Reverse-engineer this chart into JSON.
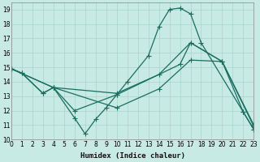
{
  "xlabel": "Humidex (Indice chaleur)",
  "xlim": [
    0,
    23
  ],
  "ylim": [
    10,
    19.5
  ],
  "yticks": [
    10,
    11,
    12,
    13,
    14,
    15,
    16,
    17,
    18,
    19
  ],
  "xticks": [
    0,
    1,
    2,
    3,
    4,
    5,
    6,
    7,
    8,
    9,
    10,
    11,
    12,
    13,
    14,
    15,
    16,
    17,
    18,
    19,
    20,
    21,
    22,
    23
  ],
  "bg_color": "#c8eae4",
  "grid_color": "#a8d4cc",
  "line_color": "#1a6e60",
  "line1_x": [
    0,
    1,
    3,
    4,
    6,
    10,
    11,
    13,
    14,
    15,
    16,
    17,
    18,
    22,
    23
  ],
  "line1_y": [
    14.9,
    14.6,
    13.2,
    13.6,
    12.0,
    13.1,
    14.0,
    15.8,
    17.8,
    19.0,
    19.1,
    18.7,
    16.7,
    11.9,
    10.7
  ],
  "line2_x": [
    0,
    1,
    3,
    4,
    6,
    7,
    8,
    9,
    10,
    16,
    17,
    20,
    22,
    23
  ],
  "line2_y": [
    14.9,
    14.6,
    13.2,
    13.6,
    11.5,
    10.4,
    11.4,
    12.2,
    13.1,
    15.2,
    16.7,
    15.4,
    11.9,
    10.7
  ],
  "line3_x": [
    0,
    4,
    10,
    14,
    17,
    20,
    23
  ],
  "line3_y": [
    14.9,
    13.6,
    13.2,
    14.5,
    16.7,
    15.4,
    11.0
  ],
  "line4_x": [
    0,
    4,
    10,
    14,
    17,
    20,
    23
  ],
  "line4_y": [
    14.9,
    13.6,
    12.2,
    13.5,
    15.5,
    15.4,
    10.9
  ],
  "marker_size": 2.5,
  "lw": 0.9
}
